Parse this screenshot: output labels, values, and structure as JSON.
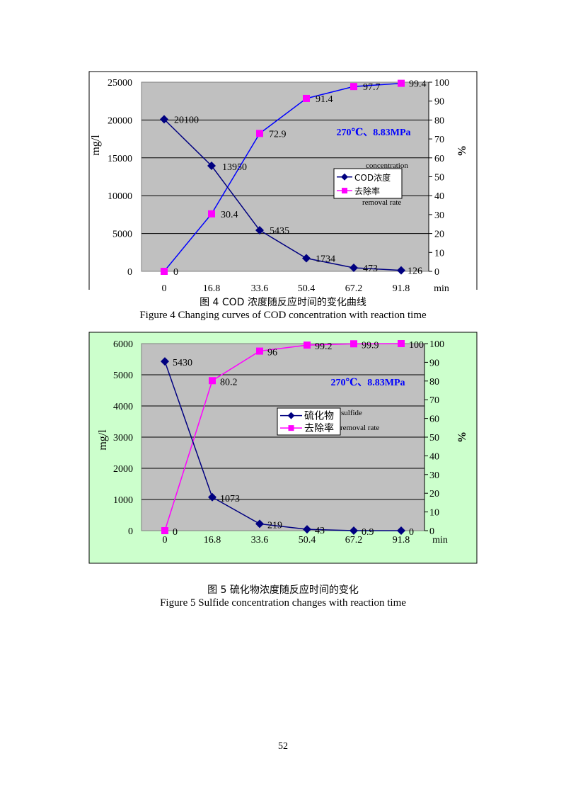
{
  "chart_data": [
    {
      "type": "line",
      "x": [
        0,
        16.8,
        33.6,
        50.4,
        67.2,
        91.8
      ],
      "x_unit": "min",
      "ylabel": "mg/l",
      "y2label": "%",
      "ylim": [
        0,
        25000
      ],
      "y2lim": [
        0,
        100
      ],
      "yticks": [
        0,
        5000,
        10000,
        15000,
        20000,
        25000
      ],
      "y2ticks": [
        0,
        10,
        20,
        30,
        40,
        50,
        60,
        70,
        80,
        90,
        100
      ],
      "annotation": "270℃、8.83MPa",
      "grid": true,
      "legend_position": "center-right",
      "series": [
        {
          "name": "COD浓度",
          "name_note": "concentration",
          "axis": "left",
          "color": "#000080",
          "marker": "diamond",
          "values": [
            20100,
            13950,
            5435,
            1734,
            473,
            126
          ],
          "labels": [
            "20100",
            "13950",
            "5435",
            "1734",
            "473",
            "126"
          ]
        },
        {
          "name": "去除率",
          "name_note": "removal rate",
          "axis": "right",
          "color": "#ff00ff",
          "marker": "square",
          "line_color": "#0000ff",
          "values": [
            0,
            30.4,
            72.9,
            91.4,
            97.7,
            99.4
          ],
          "labels": [
            "0",
            "30.4",
            "72.9",
            "91.4",
            "97.7",
            "99.4"
          ]
        }
      ],
      "caption_zh": "图 4  COD 浓度随反应时间的变化曲线",
      "caption_en": "Figure 4 Changing curves of COD concentration with reaction time"
    },
    {
      "type": "line",
      "x": [
        0,
        16.8,
        33.6,
        50.4,
        67.2,
        91.8
      ],
      "x_unit": "min",
      "ylabel": "mg/l",
      "y2label": "%",
      "ylim": [
        0,
        6000
      ],
      "y2lim": [
        0,
        100
      ],
      "yticks": [
        0,
        1000,
        2000,
        3000,
        4000,
        5000,
        6000
      ],
      "y2ticks": [
        0,
        10,
        20,
        30,
        40,
        50,
        60,
        70,
        80,
        90,
        100
      ],
      "annotation": "270℃、8.83MPa",
      "grid": true,
      "legend_position": "center",
      "series": [
        {
          "name": "硫化物",
          "name_note": "sulfide",
          "axis": "left",
          "color": "#000080",
          "marker": "diamond",
          "values": [
            5430,
            1073,
            219,
            43,
            0.9,
            0
          ],
          "labels": [
            "5430",
            "1073",
            "219",
            "43",
            "0.9",
            "0"
          ]
        },
        {
          "name": "去除率",
          "name_note": "removal rate",
          "axis": "right",
          "color": "#ff00ff",
          "marker": "square",
          "values": [
            0,
            80.2,
            96,
            99.2,
            99.9,
            100
          ],
          "labels": [
            "0",
            "80.2",
            "96",
            "99.2",
            "99.9",
            "100"
          ]
        }
      ],
      "caption_zh": "图 5  硫化物浓度随反应时间的变化",
      "caption_en": "Figure 5 Sulfide concentration changes with reaction time"
    }
  ],
  "page_number": "52"
}
